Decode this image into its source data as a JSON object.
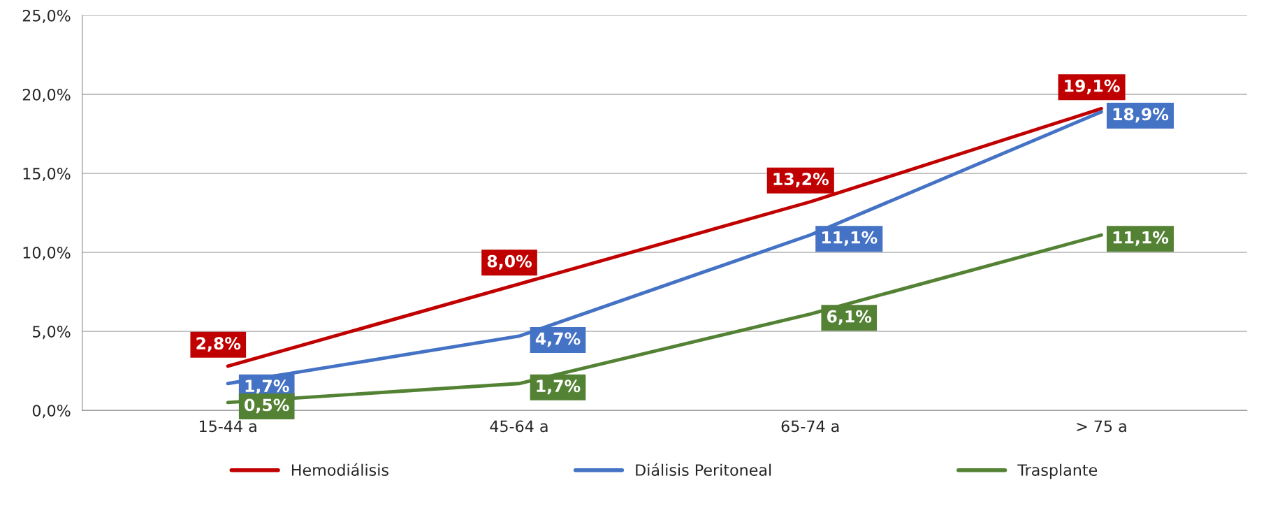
{
  "chart_data": {
    "type": "line",
    "categories": [
      "15-44 a",
      "45-64 a",
      "65-74 a",
      "> 75 a"
    ],
    "series": [
      {
        "name": "Hemodiálisis",
        "color": "#c00000",
        "values": [
          2.8,
          8.0,
          13.2,
          19.1
        ],
        "value_labels": [
          "2,8%",
          "8,0%",
          "13,2%",
          "19,1%"
        ]
      },
      {
        "name": "Diálisis Peritoneal",
        "color": "#4472c4",
        "values": [
          1.7,
          4.7,
          11.1,
          18.9
        ],
        "value_labels": [
          "1,7%",
          "4,7%",
          "11,1%",
          "18,9%"
        ]
      },
      {
        "name": "Trasplante",
        "color": "#548235",
        "values": [
          0.5,
          1.7,
          6.1,
          11.1
        ],
        "value_labels": [
          "0,5%",
          "1,7%",
          "6,1%",
          "11,1%"
        ]
      }
    ],
    "ylim": [
      0,
      25
    ],
    "yticks": [
      {
        "value": 0,
        "label": "0,0%"
      },
      {
        "value": 5,
        "label": "5,0%"
      },
      {
        "value": 10,
        "label": "10,0%"
      },
      {
        "value": 15,
        "label": "15,0%"
      },
      {
        "value": 20,
        "label": "20,0%"
      },
      {
        "value": 25,
        "label": "25,0%"
      }
    ],
    "grid": "y",
    "legend": "bottom",
    "marker": "none",
    "line_style": "solid"
  }
}
